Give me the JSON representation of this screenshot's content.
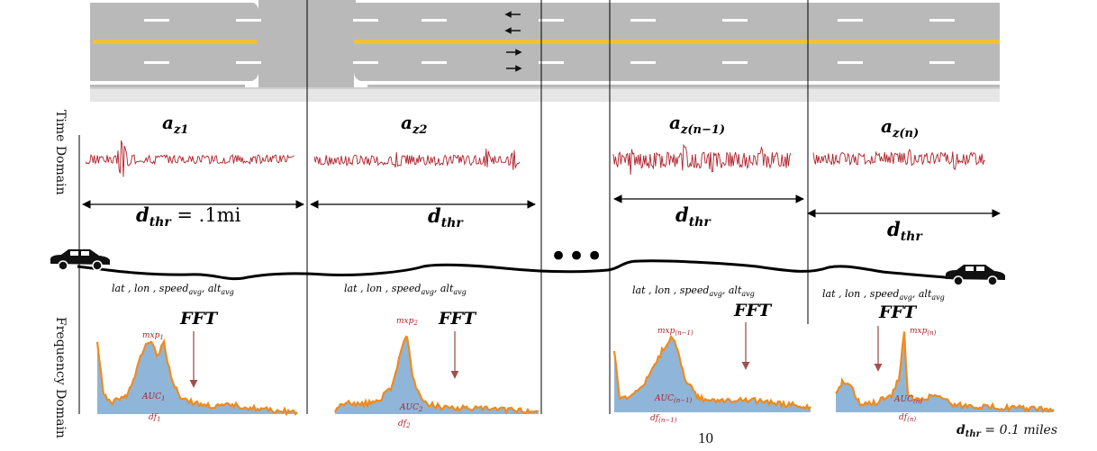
{
  "axis_labels": {
    "time_domain": "Time Domain",
    "frequency_domain": "Frequency Domain"
  },
  "segments": [
    {
      "signal": "a",
      "signal_sub": "z1",
      "distance": "d",
      "distance_sub": "thr",
      "distance_suffix": " = .1mi",
      "gps": "lat , lon , speed",
      "gps_speed_sub": "avg",
      "gps_alt": ", alt",
      "gps_alt_sub": "avg",
      "fft": "FFT",
      "mxp": "mxp",
      "mxp_sub": "1",
      "auc": "AUC",
      "auc_sub": "1",
      "df": "df",
      "df_sub": "1"
    },
    {
      "signal": "a",
      "signal_sub": "z2",
      "distance": "d",
      "distance_sub": "thr",
      "gps": "lat , lon , speed",
      "gps_speed_sub": "avg",
      "gps_alt": ", alt",
      "gps_alt_sub": "avg",
      "fft": "FFT",
      "mxp": "mxp",
      "mxp_sub": "2",
      "auc": "AUC",
      "auc_sub": "2",
      "df": "df",
      "df_sub": "2"
    },
    {
      "signal": "a",
      "signal_sub": "z(n−1)",
      "distance": "d",
      "distance_sub": "thr",
      "gps": "lat , lon , speed",
      "gps_speed_sub": "avg",
      "gps_alt": ", alt",
      "gps_alt_sub": "avg",
      "fft": "FFT",
      "mxp": "mxp",
      "mxp_sub": "(n−1)",
      "auc": "AUC",
      "auc_sub": "(n−1)",
      "df": "df",
      "df_sub": "(n−1)"
    },
    {
      "signal": "a",
      "signal_sub": "z(n)",
      "distance": "d",
      "distance_sub": "thr",
      "gps": "lat , lon , speed",
      "gps_speed_sub": "avg",
      "gps_alt": ", alt",
      "gps_alt_sub": "avg",
      "fft": "FFT",
      "mxp": "mxp",
      "mxp_sub": "(n)",
      "auc": "AUC",
      "auc_sub": "(n)",
      "df": "df",
      "df_sub": "(n)"
    }
  ],
  "ellipsis": "•••",
  "page_number": "10",
  "footer_note": {
    "d": "d",
    "sub": "thr",
    "rest": " = 0.1 miles"
  },
  "colors": {
    "signal": "#b0202a",
    "spectrum_fill": "#8fb6d8",
    "spectrum_line": "#f08a1c",
    "road": "#b9b9b9",
    "center_line": "#f2c230",
    "annotation": "#b0202a"
  }
}
